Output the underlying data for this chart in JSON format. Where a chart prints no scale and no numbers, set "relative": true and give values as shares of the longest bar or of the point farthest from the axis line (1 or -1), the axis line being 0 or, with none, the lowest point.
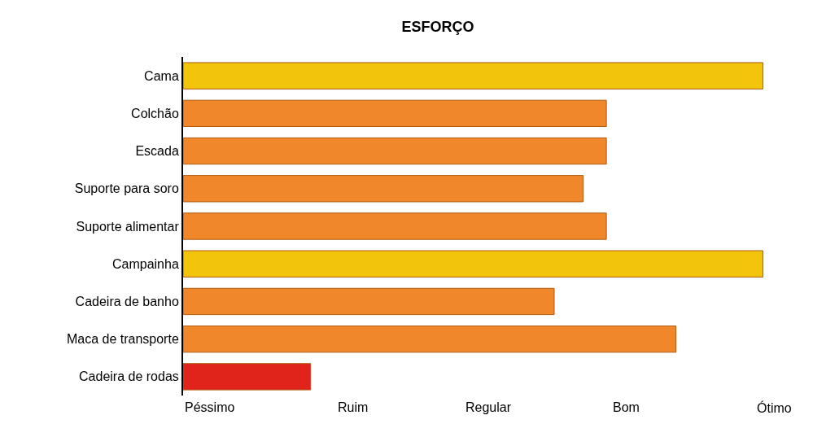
{
  "chart_data": {
    "type": "bar",
    "orientation": "horizontal",
    "title": "ESFORÇO",
    "relative": true,
    "categories": [
      "Cama",
      "Colchão",
      "Escada",
      "Suporte para soro",
      "Suporte alimentar",
      "Campainha",
      "Cadeira de banho",
      "Maca de transporte",
      "Cadeira de rodas"
    ],
    "values": [
      1,
      0.73,
      0.73,
      0.69,
      0.73,
      1,
      0.64,
      0.85,
      0.22
    ],
    "colors": [
      "#f2c40c",
      "#f0872a",
      "#f0872a",
      "#f0872a",
      "#f0872a",
      "#f2c40c",
      "#f0872a",
      "#f0872a",
      "#e0241c"
    ],
    "annotations": [
      "Péssimo",
      "Ruim",
      "Regular",
      "Bom",
      "Ótimo"
    ]
  }
}
